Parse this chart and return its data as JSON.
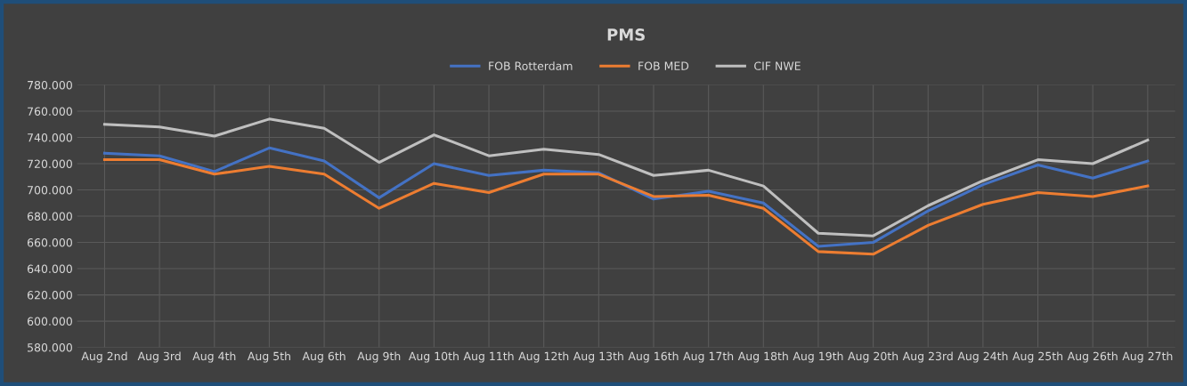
{
  "chart_data": {
    "type": "line",
    "title": "PMS",
    "categories": [
      "Aug 2nd",
      "Aug 3rd",
      "Aug 4th",
      "Aug 5th",
      "Aug 6th",
      "Aug 9th",
      "Aug 10th",
      "Aug 11th",
      "Aug 12th",
      "Aug 13th",
      "Aug 16th",
      "Aug 17th",
      "Aug 18th",
      "Aug 19th",
      "Aug 20th",
      "Aug 23rd",
      "Aug 24th",
      "Aug 25th",
      "Aug 26th",
      "Aug 27th"
    ],
    "series": [
      {
        "name": "FOB Rotterdam",
        "color": "#4472c4",
        "values": [
          728,
          726,
          714,
          732,
          722,
          694,
          720,
          711,
          715,
          713,
          693,
          699,
          690,
          657,
          660,
          684,
          704,
          719,
          709,
          722
        ]
      },
      {
        "name": "FOB MED",
        "color": "#ed7d31",
        "values": [
          723,
          723,
          712,
          718,
          712,
          686,
          705,
          698,
          712,
          712,
          695,
          696,
          686,
          653,
          651,
          673,
          689,
          698,
          695,
          703
        ]
      },
      {
        "name": "CIF NWE",
        "color": "#bfbfbf",
        "values": [
          750,
          748,
          741,
          754,
          747,
          721,
          742,
          726,
          731,
          727,
          711,
          715,
          703,
          667,
          665,
          688,
          707,
          723,
          720,
          738
        ]
      }
    ],
    "ylim": [
      580,
      780
    ],
    "yticks": [
      {
        "value": 580,
        "label": "580.000"
      },
      {
        "value": 600,
        "label": "600.000"
      },
      {
        "value": 620,
        "label": "620.000"
      },
      {
        "value": 640,
        "label": "640.000"
      },
      {
        "value": 660,
        "label": "660.000"
      },
      {
        "value": 680,
        "label": "680.000"
      },
      {
        "value": 700,
        "label": "700.000"
      },
      {
        "value": 720,
        "label": "720.000"
      },
      {
        "value": 740,
        "label": "740.000"
      },
      {
        "value": 760,
        "label": "760.000"
      },
      {
        "value": 780,
        "label": "780.000"
      }
    ],
    "grid": true,
    "legend": "top",
    "marker": "none",
    "line_style": "solid"
  }
}
